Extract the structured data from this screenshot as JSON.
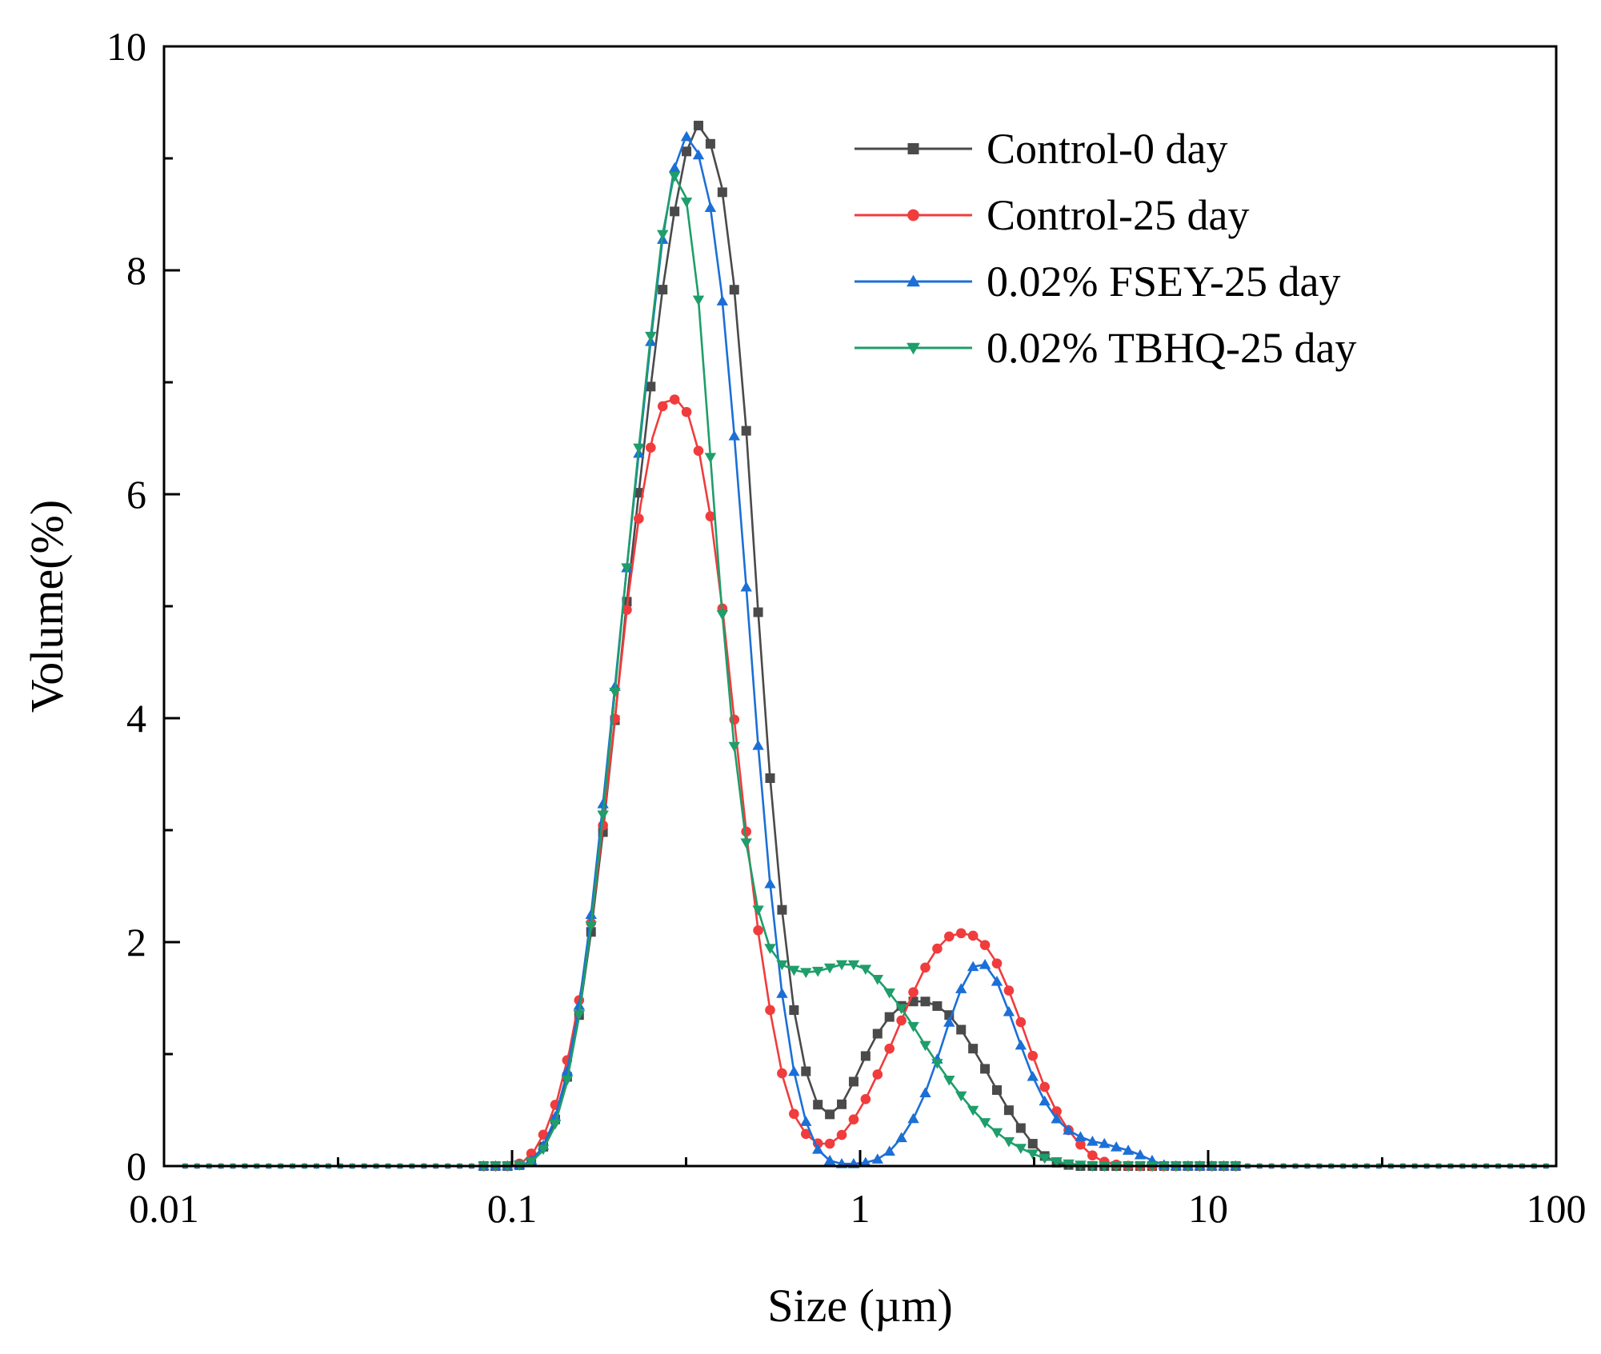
{
  "chart_data": {
    "type": "line",
    "title": "",
    "xlabel": "Size (µm)",
    "ylabel": "Volume(%)",
    "xscale": "log",
    "xlim": [
      0.01,
      100
    ],
    "ylim": [
      0,
      10
    ],
    "xticks": [
      {
        "value": 0.01,
        "label": "0.01"
      },
      {
        "value": 0.1,
        "label": "0.1"
      },
      {
        "value": 1,
        "label": "1"
      },
      {
        "value": 10,
        "label": "10"
      },
      {
        "value": 100,
        "label": "100"
      }
    ],
    "yticks": [
      {
        "value": 0,
        "label": "0"
      },
      {
        "value": 2,
        "label": "2"
      },
      {
        "value": 4,
        "label": "4"
      },
      {
        "value": 6,
        "label": "6"
      },
      {
        "value": 8,
        "label": "8"
      },
      {
        "value": 10,
        "label": "10"
      }
    ],
    "grid": false,
    "legend_position": "top-right",
    "series": [
      {
        "name": "Control-0 day",
        "color": "#4a4a4a",
        "marker": "square",
        "points": [
          [
            0.0115,
            0
          ],
          [
            0.1,
            0
          ],
          [
            0.112,
            0.02
          ],
          [
            0.122,
            0.15
          ],
          [
            0.132,
            0.38
          ],
          [
            0.143,
            0.75
          ],
          [
            0.155,
            1.3
          ],
          [
            0.168,
            2.05
          ],
          [
            0.182,
            2.95
          ],
          [
            0.197,
            3.95
          ],
          [
            0.213,
            5.0
          ],
          [
            0.231,
            6.0
          ],
          [
            0.25,
            6.95
          ],
          [
            0.27,
            7.8
          ],
          [
            0.292,
            8.5
          ],
          [
            0.316,
            9.05
          ],
          [
            0.342,
            9.3
          ],
          [
            0.37,
            9.15
          ],
          [
            0.4,
            8.75
          ],
          [
            0.433,
            7.9
          ],
          [
            0.47,
            6.6
          ],
          [
            0.508,
            5.0
          ],
          [
            0.55,
            3.5
          ],
          [
            0.596,
            2.3
          ],
          [
            0.645,
            1.4
          ],
          [
            0.698,
            0.85
          ],
          [
            0.755,
            0.55
          ],
          [
            0.817,
            0.46
          ],
          [
            0.885,
            0.55
          ],
          [
            0.957,
            0.75
          ],
          [
            1.036,
            0.98
          ],
          [
            1.121,
            1.18
          ],
          [
            1.213,
            1.33
          ],
          [
            1.313,
            1.43
          ],
          [
            1.421,
            1.47
          ],
          [
            1.538,
            1.47
          ],
          [
            1.664,
            1.43
          ],
          [
            1.801,
            1.35
          ],
          [
            1.949,
            1.22
          ],
          [
            2.11,
            1.05
          ],
          [
            2.283,
            0.87
          ],
          [
            2.471,
            0.68
          ],
          [
            2.674,
            0.5
          ],
          [
            2.894,
            0.34
          ],
          [
            3.132,
            0.2
          ],
          [
            3.39,
            0.09
          ],
          [
            3.67,
            0.03
          ],
          [
            3.97,
            0.01
          ],
          [
            4.3,
            0
          ],
          [
            100,
            0
          ]
        ]
      },
      {
        "name": "Control-25 day",
        "color": "#f03c3c",
        "marker": "circle",
        "points": [
          [
            0.0115,
            0
          ],
          [
            0.1,
            0
          ],
          [
            0.107,
            0.03
          ],
          [
            0.116,
            0.14
          ],
          [
            0.125,
            0.32
          ],
          [
            0.135,
            0.6
          ],
          [
            0.146,
            1.02
          ],
          [
            0.158,
            1.58
          ],
          [
            0.171,
            2.3
          ],
          [
            0.185,
            3.2
          ],
          [
            0.2,
            4.15
          ],
          [
            0.216,
            5.1
          ],
          [
            0.234,
            5.9
          ],
          [
            0.253,
            6.5
          ],
          [
            0.273,
            6.82
          ],
          [
            0.296,
            6.85
          ],
          [
            0.32,
            6.72
          ],
          [
            0.346,
            6.35
          ],
          [
            0.374,
            5.75
          ],
          [
            0.405,
            4.9
          ],
          [
            0.438,
            3.9
          ],
          [
            0.474,
            2.9
          ],
          [
            0.512,
            2.05
          ],
          [
            0.554,
            1.35
          ],
          [
            0.599,
            0.8
          ],
          [
            0.648,
            0.45
          ],
          [
            0.701,
            0.28
          ],
          [
            0.758,
            0.2
          ],
          [
            0.82,
            0.2
          ],
          [
            0.887,
            0.28
          ],
          [
            0.96,
            0.42
          ],
          [
            1.038,
            0.6
          ],
          [
            1.123,
            0.82
          ],
          [
            1.215,
            1.05
          ],
          [
            1.314,
            1.3
          ],
          [
            1.421,
            1.55
          ],
          [
            1.537,
            1.77
          ],
          [
            1.663,
            1.94
          ],
          [
            1.8,
            2.05
          ],
          [
            1.947,
            2.08
          ],
          [
            2.106,
            2.06
          ],
          [
            2.278,
            1.98
          ],
          [
            2.464,
            1.82
          ],
          [
            2.666,
            1.58
          ],
          [
            2.884,
            1.3
          ],
          [
            3.12,
            1.0
          ],
          [
            3.375,
            0.72
          ],
          [
            3.65,
            0.5
          ],
          [
            3.95,
            0.33
          ],
          [
            4.27,
            0.2
          ],
          [
            4.62,
            0.1
          ],
          [
            5.0,
            0.04
          ],
          [
            5.5,
            0.01
          ],
          [
            6.0,
            0
          ],
          [
            100,
            0
          ]
        ]
      },
      {
        "name": "0.02% FSEY-25 day",
        "color": "#1b6fd6",
        "marker": "triangle-up",
        "points": [
          [
            0.0115,
            0
          ],
          [
            0.1,
            0
          ],
          [
            0.112,
            0.03
          ],
          [
            0.122,
            0.16
          ],
          [
            0.132,
            0.4
          ],
          [
            0.143,
            0.8
          ],
          [
            0.155,
            1.38
          ],
          [
            0.168,
            2.2
          ],
          [
            0.182,
            3.2
          ],
          [
            0.197,
            4.25
          ],
          [
            0.213,
            5.3
          ],
          [
            0.231,
            6.35
          ],
          [
            0.25,
            7.35
          ],
          [
            0.27,
            8.25
          ],
          [
            0.292,
            8.9
          ],
          [
            0.316,
            9.2
          ],
          [
            0.342,
            9.05
          ],
          [
            0.37,
            8.6
          ],
          [
            0.4,
            7.8
          ],
          [
            0.433,
            6.6
          ],
          [
            0.47,
            5.2
          ],
          [
            0.508,
            3.8
          ],
          [
            0.55,
            2.55
          ],
          [
            0.596,
            1.55
          ],
          [
            0.645,
            0.85
          ],
          [
            0.698,
            0.4
          ],
          [
            0.755,
            0.15
          ],
          [
            0.817,
            0.05
          ],
          [
            0.885,
            0.02
          ],
          [
            0.957,
            0.02
          ],
          [
            1.036,
            0.03
          ],
          [
            1.121,
            0.06
          ],
          [
            1.213,
            0.13
          ],
          [
            1.313,
            0.25
          ],
          [
            1.421,
            0.42
          ],
          [
            1.538,
            0.65
          ],
          [
            1.664,
            0.95
          ],
          [
            1.801,
            1.28
          ],
          [
            1.949,
            1.58
          ],
          [
            2.11,
            1.78
          ],
          [
            2.283,
            1.8
          ],
          [
            2.471,
            1.65
          ],
          [
            2.674,
            1.38
          ],
          [
            2.894,
            1.08
          ],
          [
            3.132,
            0.8
          ],
          [
            3.39,
            0.58
          ],
          [
            3.67,
            0.42
          ],
          [
            3.97,
            0.32
          ],
          [
            4.3,
            0.26
          ],
          [
            4.65,
            0.22
          ],
          [
            5.03,
            0.2
          ],
          [
            5.44,
            0.17
          ],
          [
            5.89,
            0.14
          ],
          [
            6.37,
            0.1
          ],
          [
            6.9,
            0.05
          ],
          [
            7.47,
            0.01
          ],
          [
            8.0,
            0
          ],
          [
            100,
            0
          ]
        ]
      },
      {
        "name": "0.02% TBHQ-25 day",
        "color": "#1e9e6a",
        "marker": "triangle-down",
        "points": [
          [
            0.0115,
            0
          ],
          [
            0.1,
            0
          ],
          [
            0.112,
            0.02
          ],
          [
            0.122,
            0.13
          ],
          [
            0.132,
            0.34
          ],
          [
            0.143,
            0.72
          ],
          [
            0.155,
            1.3
          ],
          [
            0.168,
            2.1
          ],
          [
            0.182,
            3.1
          ],
          [
            0.197,
            4.2
          ],
          [
            0.213,
            5.3
          ],
          [
            0.231,
            6.4
          ],
          [
            0.25,
            7.4
          ],
          [
            0.27,
            8.3
          ],
          [
            0.292,
            8.85
          ],
          [
            0.316,
            8.65
          ],
          [
            0.342,
            7.8
          ],
          [
            0.37,
            6.4
          ],
          [
            0.4,
            5.0
          ],
          [
            0.433,
            3.8
          ],
          [
            0.47,
            2.9
          ],
          [
            0.508,
            2.3
          ],
          [
            0.55,
            1.95
          ],
          [
            0.596,
            1.8
          ],
          [
            0.645,
            1.75
          ],
          [
            0.698,
            1.73
          ],
          [
            0.755,
            1.74
          ],
          [
            0.817,
            1.77
          ],
          [
            0.885,
            1.8
          ],
          [
            0.957,
            1.8
          ],
          [
            1.036,
            1.76
          ],
          [
            1.121,
            1.67
          ],
          [
            1.213,
            1.55
          ],
          [
            1.313,
            1.41
          ],
          [
            1.421,
            1.25
          ],
          [
            1.538,
            1.08
          ],
          [
            1.664,
            0.92
          ],
          [
            1.801,
            0.77
          ],
          [
            1.949,
            0.63
          ],
          [
            2.11,
            0.5
          ],
          [
            2.283,
            0.39
          ],
          [
            2.471,
            0.3
          ],
          [
            2.674,
            0.22
          ],
          [
            2.894,
            0.16
          ],
          [
            3.132,
            0.11
          ],
          [
            3.39,
            0.07
          ],
          [
            3.67,
            0.04
          ],
          [
            3.97,
            0.02
          ],
          [
            4.3,
            0.01
          ],
          [
            4.65,
            0
          ],
          [
            100,
            0
          ]
        ]
      }
    ]
  }
}
